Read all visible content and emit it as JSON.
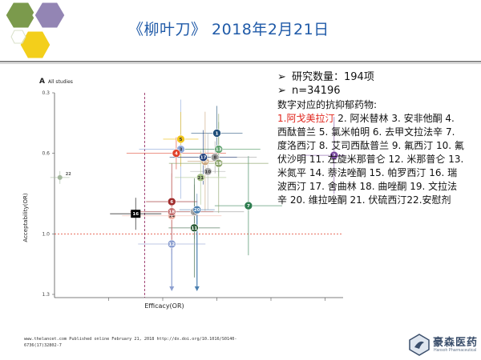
{
  "header": {
    "title": "《柳叶刀》 2018年2月21日",
    "colors": {
      "hex_top_left": "#7b9a4c",
      "hex_top_right": "#9385b4",
      "hex_bottom": "#f3cf1b"
    }
  },
  "stats": {
    "arrow_glyph": "➢",
    "study_count": "研究数量：194项",
    "sample_size": "n=34196",
    "drug_list_title": "数字对应的抗抑郁药物:",
    "drug_list_highlight": "1.阿戈美拉汀",
    "drug_list_rest": " 2. 阿米替林 3. 安非他酮 4. 西酞普兰 5. 氯米帕明 6. 去甲文拉法辛 7. 度洛西汀 8. 艾司西酞普兰 9. 氟西汀 10. 氟伏沙明 11. 左旋米那普仑 12. 米那普仑 13. 米氮平 14. 萘法唑酮 15. 帕罗西汀 16. 瑞波西汀 17. 舍曲林 18. 曲唑酮 19. 文拉法辛 20. 维拉唑酮 21. 伏硫西汀22.安慰剂",
    "highlight_color": "#e0251c"
  },
  "chart_data": {
    "type": "scatter",
    "panel_label": "A",
    "panel_subtitle": "All studies",
    "xlabel": "Efficacy(OR)",
    "ylabel": "Acceptability(OR)",
    "ylim": [
      0.3,
      1.3
    ],
    "xlim": [
      0,
      3.2
    ],
    "yticks": [
      "0.3",
      "0.6",
      "1.0",
      "1.3"
    ],
    "reference_lines": {
      "x": 1.0,
      "y": 1.0
    },
    "points": [
      {
        "id": "1",
        "x": 1.8,
        "y": 0.5,
        "color": "#1f4e79"
      },
      {
        "id": "2",
        "x": 3.1,
        "y": 0.61,
        "color": "#7a4aa0"
      },
      {
        "id": "3",
        "x": 1.4,
        "y": 0.58,
        "color": "#8faadc"
      },
      {
        "id": "4",
        "x": 1.35,
        "y": 0.6,
        "color": "#e0402a"
      },
      {
        "id": "5",
        "x": 1.4,
        "y": 0.53,
        "color": "#f0c419"
      },
      {
        "id": "6",
        "x": 1.3,
        "y": 0.84,
        "color": "#a02c2c"
      },
      {
        "id": "7",
        "x": 2.15,
        "y": 0.86,
        "color": "#2e7d4f"
      },
      {
        "id": "8",
        "x": 1.78,
        "y": 0.62,
        "color": "#9e9e9e"
      },
      {
        "id": "9",
        "x": 1.55,
        "y": 0.89,
        "color": "#a6a6a6"
      },
      {
        "id": "10",
        "x": 1.7,
        "y": 0.69,
        "color": "#b0b0b0"
      },
      {
        "id": "11",
        "x": 1.55,
        "y": 0.97,
        "color": "#2e5e3a"
      },
      {
        "id": "12",
        "x": 1.3,
        "y": 1.05,
        "color": "#8c9fd0"
      },
      {
        "id": "13",
        "x": 1.82,
        "y": 0.58,
        "color": "#5a9e6a"
      },
      {
        "id": "14",
        "x": 1.3,
        "y": 0.91,
        "color": "#f4b6a8"
      },
      {
        "id": "15",
        "x": 1.67,
        "y": 0.64,
        "color": "#c9a47a"
      },
      {
        "id": "16",
        "x": 0.9,
        "y": 0.9,
        "color": "#000000"
      },
      {
        "id": "17",
        "x": 1.65,
        "y": 0.62,
        "color": "#1f3d7a"
      },
      {
        "id": "18",
        "x": 1.3,
        "y": 0.89,
        "color": "#c26a6a"
      },
      {
        "id": "19",
        "x": 1.82,
        "y": 0.65,
        "color": "#8aa36a"
      },
      {
        "id": "20",
        "x": 1.58,
        "y": 0.88,
        "color": "#4a7fb0"
      },
      {
        "id": "21",
        "x": 1.62,
        "y": 0.72,
        "color": "#a9c48a"
      },
      {
        "id": "22",
        "x": 0.06,
        "y": 0.72,
        "color": "#a5b89e"
      }
    ]
  },
  "footer": {
    "citation": "www.thelancet.com Published online February 21, 2018 http://dx.doi.org/10.1016/S0140-6736(17)32802-7"
  },
  "logo": {
    "name_cn": "豪森医药",
    "name_en": "Hansoh Pharmaceutical",
    "color": "#3a4e6b"
  }
}
